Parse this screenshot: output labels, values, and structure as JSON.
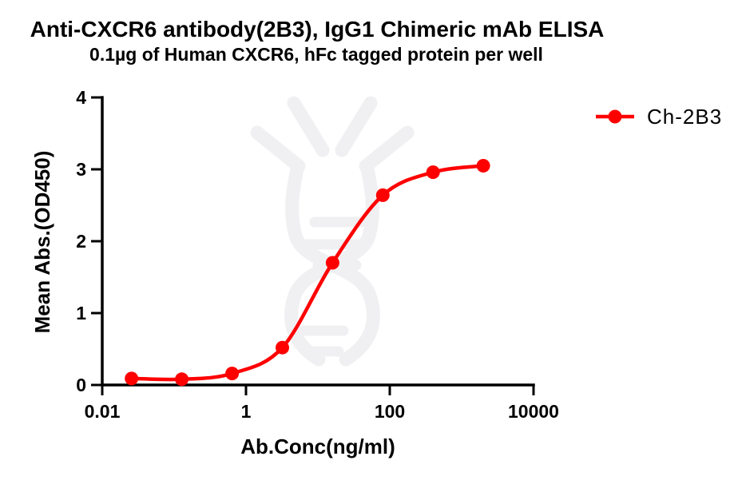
{
  "chart_data": {
    "type": "line",
    "title": "Anti-CXCR6 antibody(2B3), IgG1 Chimeric mAb ELISA",
    "subtitle": "0.1µg of Human CXCR6, hFc tagged protein per well",
    "xlabel": "Ab.Conc(ng/ml)",
    "ylabel": "Mean Abs.(OD450)",
    "x_scale": "log10",
    "xlim": [
      0.01,
      10000
    ],
    "ylim": [
      0,
      4
    ],
    "grid": false,
    "legend_position": "right-top",
    "x_ticks": [
      {
        "value": 0.01,
        "label": "0.01"
      },
      {
        "value": 1,
        "label": "1"
      },
      {
        "value": 100,
        "label": "100"
      },
      {
        "value": 10000,
        "label": "10000"
      }
    ],
    "y_ticks": [
      {
        "value": 0,
        "label": "0"
      },
      {
        "value": 1,
        "label": "1"
      },
      {
        "value": 2,
        "label": "2"
      },
      {
        "value": 3,
        "label": "3"
      },
      {
        "value": 4,
        "label": "4"
      }
    ],
    "series": [
      {
        "name": "Ch-2B3",
        "color": "#ff0000",
        "marker": "circle",
        "x": [
          0.0256,
          0.128,
          0.64,
          3.2,
          16,
          80,
          400,
          2000
        ],
        "y": [
          0.09,
          0.08,
          0.16,
          0.52,
          1.7,
          2.64,
          2.96,
          3.05
        ]
      }
    ],
    "watermark": "dna-antibody-logo"
  }
}
